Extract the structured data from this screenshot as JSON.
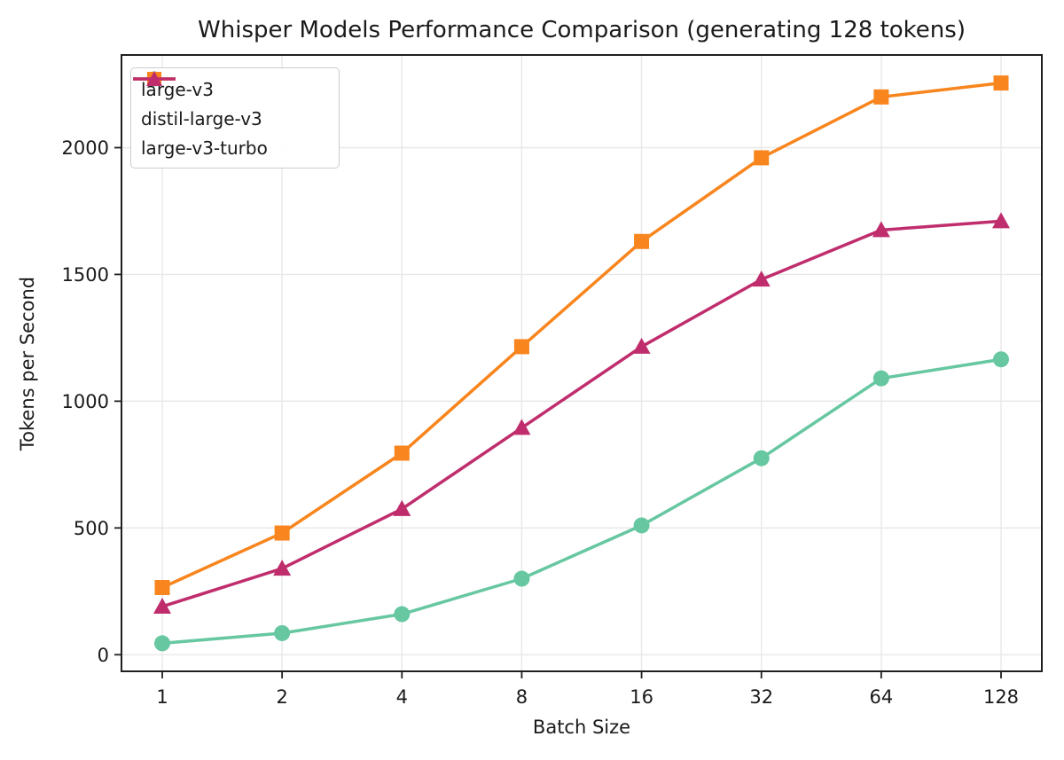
{
  "chart_data": {
    "type": "line",
    "title": "Whisper Models Performance Comparison (generating 128 tokens)",
    "xlabel": "Batch Size",
    "ylabel": "Tokens per Second",
    "x_scale": "log2",
    "categories": [
      1,
      2,
      4,
      8,
      16,
      32,
      64,
      128
    ],
    "y_ticks": [
      0,
      500,
      1000,
      1500,
      2000
    ],
    "ylim": [
      -65.5,
      2365.5
    ],
    "grid": true,
    "legend_position": "upper-left",
    "series": [
      {
        "name": "large-v3",
        "marker": "circle",
        "color": "#66c7a1",
        "values": [
          45,
          85,
          160,
          300,
          510,
          775,
          1090,
          1165
        ]
      },
      {
        "name": "distil-large-v3",
        "marker": "square",
        "color": "#f8851d",
        "values": [
          265,
          480,
          795,
          1215,
          1630,
          1960,
          2200,
          2255
        ]
      },
      {
        "name": "large-v3-turbo",
        "marker": "triangle",
        "color": "#c02d6d",
        "values": [
          190,
          340,
          575,
          895,
          1215,
          1480,
          1675,
          1710
        ]
      }
    ]
  },
  "style": {
    "grid_color": "#e8e8e8",
    "spine_color": "#1f1f1f",
    "text_color": "#1a1a1a",
    "plot_bg": "#ffffff"
  }
}
